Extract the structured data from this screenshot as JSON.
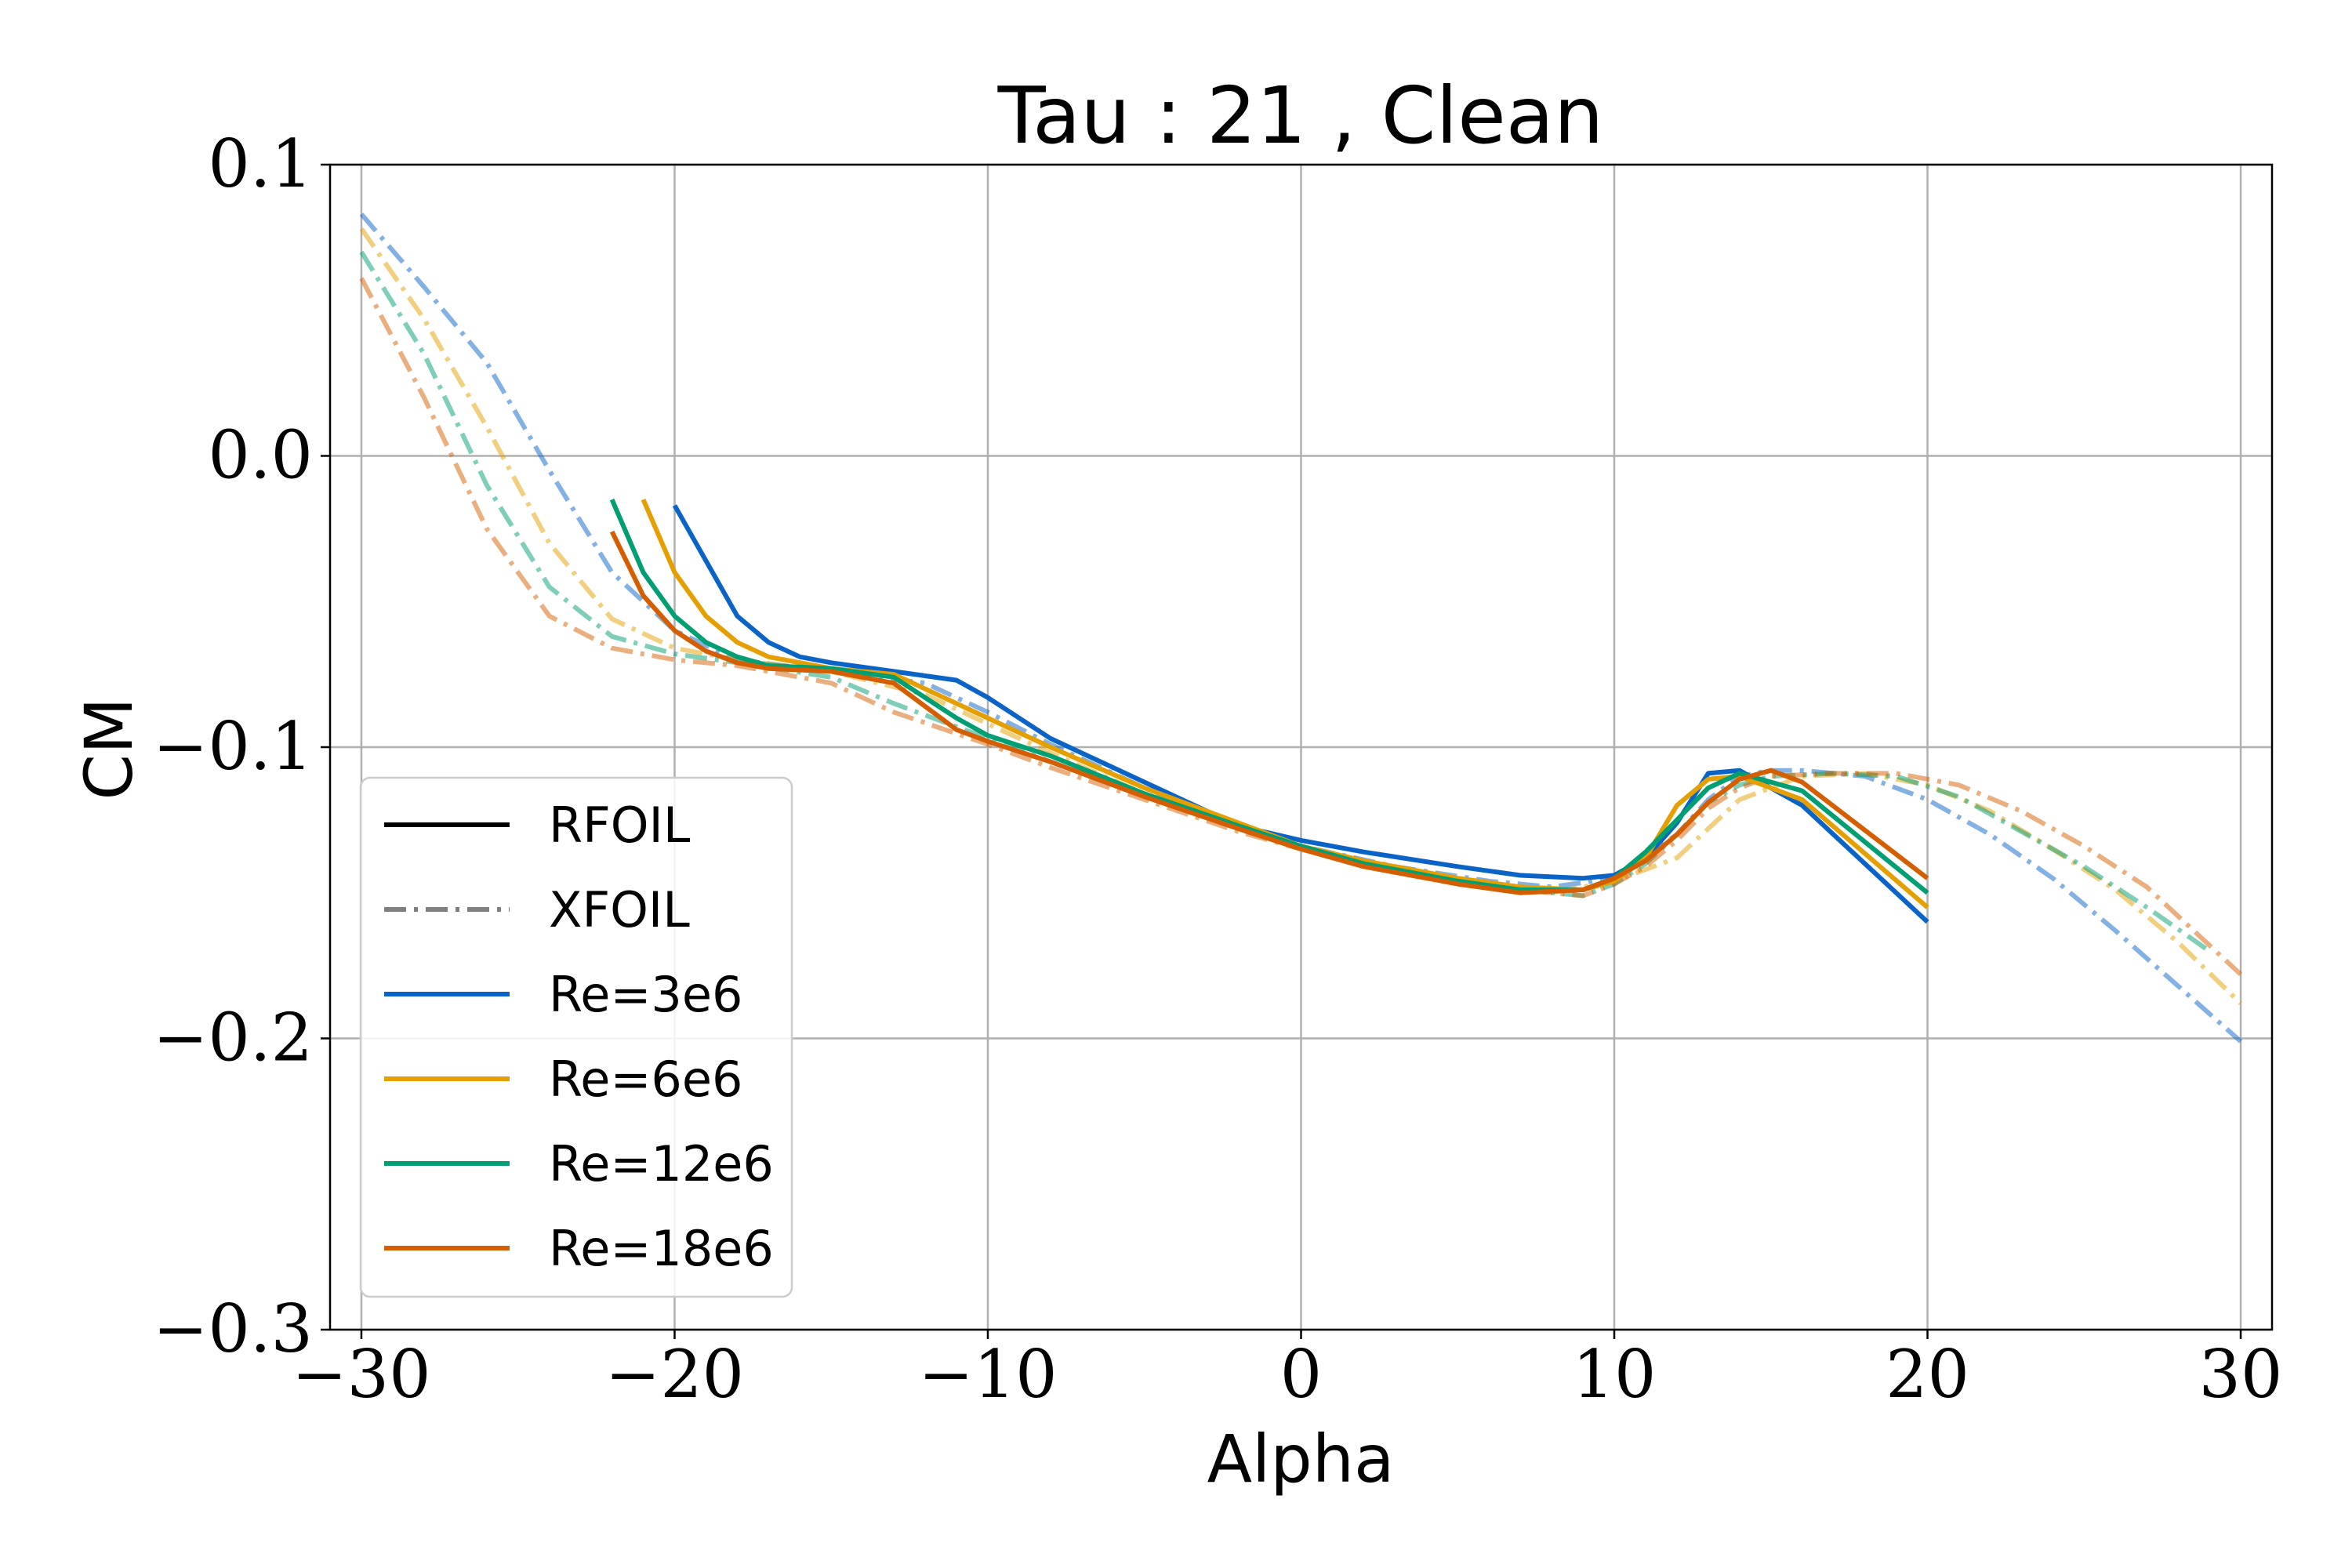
{
  "chart_data": {
    "type": "line",
    "title": "Tau : 21 , Clean",
    "xlabel": "Alpha",
    "ylabel": "CM",
    "xlim": [
      -31,
      31
    ],
    "ylim": [
      -0.3,
      0.1
    ],
    "xticks": [
      -30,
      -20,
      -10,
      0,
      10,
      20,
      30
    ],
    "xtick_labels": [
      "−30",
      "−20",
      "−10",
      "0",
      "10",
      "20",
      "30"
    ],
    "yticks": [
      -0.3,
      -0.2,
      -0.1,
      0.0,
      0.1
    ],
    "ytick_labels": [
      "−0.3",
      "−0.2",
      "−0.1",
      "0.0",
      "0.1"
    ],
    "grid": true,
    "legend_position": "lower-left",
    "legend": [
      {
        "label": "RFOIL",
        "color": "#000000",
        "style": "solid"
      },
      {
        "label": "XFOIL",
        "color": "#808080",
        "style": "dashdot"
      },
      {
        "label": "Re=3e6",
        "color": "#0a64c8",
        "style": "solid"
      },
      {
        "label": "Re=6e6",
        "color": "#e69f00",
        "style": "solid"
      },
      {
        "label": "Re=12e6",
        "color": "#009e73",
        "style": "solid"
      },
      {
        "label": "Re=18e6",
        "color": "#d55e00",
        "style": "solid"
      }
    ],
    "series": [
      {
        "name": "Re=3e6",
        "method": "RFOIL",
        "color": "#0a64c8",
        "x": [
          -20,
          -18,
          -17,
          -16,
          -15,
          -13,
          -11,
          -10,
          -8,
          -5,
          -2,
          0,
          2,
          5,
          7,
          9,
          10,
          11,
          12,
          13,
          14,
          16,
          20
        ],
        "y": [
          -0.017,
          -0.055,
          -0.064,
          -0.069,
          -0.071,
          -0.074,
          -0.077,
          -0.083,
          -0.097,
          -0.112,
          -0.127,
          -0.132,
          -0.136,
          -0.141,
          -0.144,
          -0.145,
          -0.144,
          -0.138,
          -0.126,
          -0.109,
          -0.108,
          -0.12,
          -0.16
        ]
      },
      {
        "name": "Re=6e6",
        "method": "RFOIL",
        "color": "#e69f00",
        "x": [
          -21,
          -20,
          -19,
          -18,
          -17,
          -15,
          -13,
          -12,
          -10,
          -8,
          -5,
          -2,
          0,
          2,
          5,
          7,
          9,
          10,
          11,
          12,
          13,
          14,
          16,
          20
        ],
        "y": [
          -0.015,
          -0.04,
          -0.055,
          -0.064,
          -0.069,
          -0.073,
          -0.075,
          -0.08,
          -0.09,
          -0.1,
          -0.114,
          -0.126,
          -0.134,
          -0.139,
          -0.145,
          -0.148,
          -0.149,
          -0.146,
          -0.138,
          -0.12,
          -0.111,
          -0.11,
          -0.118,
          -0.155
        ]
      },
      {
        "name": "Re=12e6",
        "method": "RFOIL",
        "color": "#009e73",
        "x": [
          -22,
          -21,
          -20,
          -19,
          -18,
          -17,
          -15,
          -13,
          -11,
          -10,
          -8,
          -5,
          -2,
          0,
          2,
          5,
          7,
          9,
          10,
          11,
          12,
          13,
          14,
          16,
          20
        ],
        "y": [
          -0.015,
          -0.04,
          -0.055,
          -0.064,
          -0.069,
          -0.072,
          -0.073,
          -0.076,
          -0.09,
          -0.096,
          -0.103,
          -0.116,
          -0.127,
          -0.134,
          -0.14,
          -0.146,
          -0.149,
          -0.149,
          -0.145,
          -0.136,
          -0.125,
          -0.114,
          -0.109,
          -0.115,
          -0.15
        ]
      },
      {
        "name": "Re=18e6",
        "method": "RFOIL",
        "color": "#d55e00",
        "x": [
          -22,
          -21,
          -20,
          -19,
          -18,
          -17,
          -15,
          -13,
          -11,
          -10,
          -8,
          -5,
          -2,
          0,
          2,
          5,
          7,
          9,
          10,
          11,
          12,
          13,
          14,
          15,
          16,
          20
        ],
        "y": [
          -0.026,
          -0.048,
          -0.06,
          -0.067,
          -0.071,
          -0.073,
          -0.074,
          -0.078,
          -0.094,
          -0.098,
          -0.105,
          -0.117,
          -0.128,
          -0.135,
          -0.141,
          -0.147,
          -0.15,
          -0.149,
          -0.145,
          -0.139,
          -0.13,
          -0.119,
          -0.111,
          -0.108,
          -0.112,
          -0.145
        ]
      },
      {
        "name": "Re=3e6",
        "method": "XFOIL",
        "color": "#0a64c8",
        "x": [
          -30,
          -28,
          -26,
          -24,
          -22,
          -20,
          -18,
          -15,
          -12,
          -10,
          -8,
          -5,
          -2,
          0,
          3,
          6,
          8,
          10,
          12,
          13,
          14,
          15,
          16,
          18,
          20,
          22,
          24,
          26,
          28,
          30
        ],
        "y": [
          0.083,
          0.058,
          0.032,
          -0.005,
          -0.04,
          -0.06,
          -0.07,
          -0.074,
          -0.078,
          -0.088,
          -0.099,
          -0.114,
          -0.127,
          -0.134,
          -0.141,
          -0.146,
          -0.148,
          -0.145,
          -0.13,
          -0.118,
          -0.11,
          -0.108,
          -0.108,
          -0.11,
          -0.118,
          -0.13,
          -0.145,
          -0.163,
          -0.182,
          -0.201
        ]
      },
      {
        "name": "Re=6e6",
        "method": "XFOIL",
        "color": "#e69f00",
        "x": [
          -30,
          -28,
          -26,
          -24,
          -22,
          -20,
          -18,
          -15,
          -12,
          -10,
          -8,
          -5,
          -2,
          0,
          3,
          6,
          8,
          10,
          12,
          13,
          14,
          16,
          18,
          20,
          22,
          24,
          26,
          28,
          30
        ],
        "y": [
          0.078,
          0.047,
          0.01,
          -0.03,
          -0.056,
          -0.066,
          -0.07,
          -0.074,
          -0.082,
          -0.092,
          -0.102,
          -0.116,
          -0.128,
          -0.135,
          -0.142,
          -0.148,
          -0.15,
          -0.146,
          -0.138,
          -0.128,
          -0.118,
          -0.11,
          -0.109,
          -0.113,
          -0.122,
          -0.135,
          -0.149,
          -0.167,
          -0.188
        ]
      },
      {
        "name": "Re=12e6",
        "method": "XFOIL",
        "color": "#009e73",
        "x": [
          -30,
          -28,
          -26,
          -24,
          -22,
          -20,
          -18,
          -15,
          -13,
          -10,
          -8,
          -5,
          -2,
          0,
          3,
          6,
          9,
          10,
          11,
          12,
          13,
          14,
          15,
          17,
          19,
          21,
          23,
          25,
          27,
          29
        ],
        "y": [
          0.07,
          0.035,
          -0.01,
          -0.045,
          -0.062,
          -0.068,
          -0.071,
          -0.076,
          -0.085,
          -0.097,
          -0.105,
          -0.117,
          -0.128,
          -0.135,
          -0.143,
          -0.148,
          -0.151,
          -0.147,
          -0.14,
          -0.13,
          -0.119,
          -0.113,
          -0.11,
          -0.109,
          -0.11,
          -0.117,
          -0.129,
          -0.141,
          -0.155,
          -0.17
        ]
      },
      {
        "name": "Re=18e6",
        "method": "XFOIL",
        "color": "#d55e00",
        "x": [
          -30,
          -28,
          -26,
          -24,
          -22,
          -20,
          -18,
          -15,
          -13,
          -10,
          -8,
          -5,
          -2,
          0,
          3,
          6,
          9,
          10,
          11,
          12,
          13,
          14,
          15,
          17,
          19,
          21,
          23,
          25,
          27,
          30
        ],
        "y": [
          0.061,
          0.02,
          -0.025,
          -0.055,
          -0.066,
          -0.07,
          -0.072,
          -0.078,
          -0.088,
          -0.099,
          -0.107,
          -0.118,
          -0.129,
          -0.135,
          -0.143,
          -0.148,
          -0.151,
          -0.147,
          -0.141,
          -0.132,
          -0.121,
          -0.114,
          -0.11,
          -0.109,
          -0.109,
          -0.113,
          -0.122,
          -0.134,
          -0.148,
          -0.178
        ]
      }
    ]
  }
}
